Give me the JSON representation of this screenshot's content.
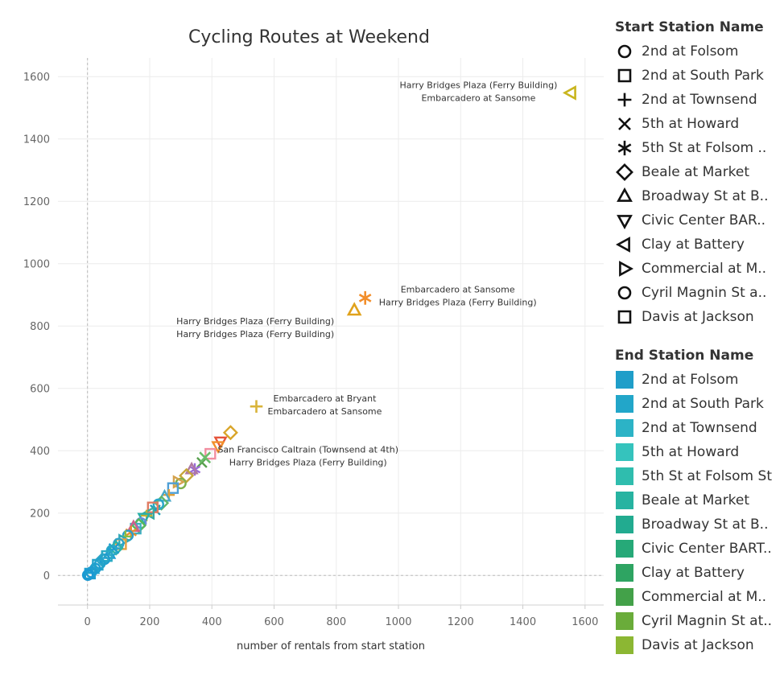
{
  "chart_data": {
    "type": "scatter",
    "title": "Cycling Routes at Weekend",
    "xlabel": "number of rentals from start station",
    "ylabel": "",
    "xlim": [
      -95,
      1660
    ],
    "ylim": [
      -95,
      1660
    ],
    "x_ticks": [
      0,
      200,
      400,
      600,
      800,
      1000,
      1200,
      1400,
      1600
    ],
    "y_ticks": [
      0,
      200,
      400,
      600,
      800,
      1000,
      1200,
      1400,
      1600
    ],
    "grid": true,
    "reference_lines": {
      "x": 0,
      "y": 0
    },
    "labeled_points": [
      {
        "x": 1555,
        "y": 1548,
        "shape": "triangle-left",
        "color": "#c9b51e",
        "start": "Harry Bridges Plaza (Ferry Building)",
        "end": "Embarcadero at Sansome",
        "label_pos": "left"
      },
      {
        "x": 893,
        "y": 890,
        "shape": "asterisk",
        "color": "#f28e2b",
        "start": "Embarcadero at Sansome",
        "end": "Harry Bridges Plaza (Ferry Building)",
        "label_pos": "right-up"
      },
      {
        "x": 858,
        "y": 850,
        "shape": "triangle-up",
        "color": "#e0a21c",
        "start": "Harry Bridges Plaza (Ferry Building)",
        "end": "Harry Bridges Plaza (Ferry Building)",
        "label_pos": "below"
      },
      {
        "x": 543,
        "y": 542,
        "shape": "plus",
        "color": "#d9b43a",
        "start": "Embarcadero at Bryant",
        "end": "Embarcadero at Sansome",
        "label_pos": "right"
      },
      {
        "x": 378,
        "y": 378,
        "shape": "cross",
        "color": "#6bbd6a",
        "start": "San Francisco Caltrain (Townsend at 4th)",
        "end": "Harry Bridges Plaza (Ferry Building)",
        "label_pos": "right-down"
      }
    ],
    "other_points": [
      {
        "x": 460,
        "y": 458,
        "shape": "diamond",
        "color": "#d9a52a"
      },
      {
        "x": 428,
        "y": 430,
        "shape": "triangle-down",
        "color": "#e5533a"
      },
      {
        "x": 420,
        "y": 415,
        "shape": "triangle-down",
        "color": "#f28e2b"
      },
      {
        "x": 395,
        "y": 390,
        "shape": "square",
        "color": "#f28ea0"
      },
      {
        "x": 368,
        "y": 362,
        "shape": "cross",
        "color": "#59a14f"
      },
      {
        "x": 345,
        "y": 340,
        "shape": "asterisk",
        "color": "#9b6bd6"
      },
      {
        "x": 335,
        "y": 340,
        "shape": "triangle-up",
        "color": "#b07aa1"
      },
      {
        "x": 318,
        "y": 320,
        "shape": "diamond",
        "color": "#c6a63a"
      },
      {
        "x": 300,
        "y": 295,
        "shape": "circle",
        "color": "#7fb04b"
      },
      {
        "x": 290,
        "y": 300,
        "shape": "triangle-right",
        "color": "#d4a24c"
      },
      {
        "x": 275,
        "y": 280,
        "shape": "square",
        "color": "#4e9fd6"
      },
      {
        "x": 262,
        "y": 258,
        "shape": "plus",
        "color": "#e1a03a"
      },
      {
        "x": 248,
        "y": 252,
        "shape": "triangle-up",
        "color": "#4aa8c8"
      },
      {
        "x": 238,
        "y": 232,
        "shape": "diamond",
        "color": "#5fb66a"
      },
      {
        "x": 228,
        "y": 228,
        "shape": "circle",
        "color": "#2aa7c9"
      },
      {
        "x": 218,
        "y": 210,
        "shape": "cross",
        "color": "#1f9fb8"
      },
      {
        "x": 210,
        "y": 218,
        "shape": "square",
        "color": "#e07b62"
      },
      {
        "x": 200,
        "y": 200,
        "shape": "triangle-left",
        "color": "#3aa9a0"
      },
      {
        "x": 190,
        "y": 192,
        "shape": "plus",
        "color": "#c0b035"
      },
      {
        "x": 182,
        "y": 185,
        "shape": "triangle-down",
        "color": "#28b0a8"
      },
      {
        "x": 172,
        "y": 168,
        "shape": "circle",
        "color": "#6a8ed6"
      },
      {
        "x": 165,
        "y": 160,
        "shape": "diamond",
        "color": "#58b858"
      },
      {
        "x": 155,
        "y": 150,
        "shape": "square",
        "color": "#3db0c0"
      },
      {
        "x": 148,
        "y": 155,
        "shape": "triangle-up",
        "color": "#d35f8a"
      },
      {
        "x": 140,
        "y": 138,
        "shape": "asterisk",
        "color": "#e8902e"
      },
      {
        "x": 130,
        "y": 128,
        "shape": "circle",
        "color": "#2a9fd0"
      },
      {
        "x": 122,
        "y": 125,
        "shape": "plus",
        "color": "#8cbf3f"
      },
      {
        "x": 115,
        "y": 112,
        "shape": "triangle-right",
        "color": "#31a9b8"
      },
      {
        "x": 108,
        "y": 100,
        "shape": "square",
        "color": "#e6a040"
      },
      {
        "x": 100,
        "y": 102,
        "shape": "circle",
        "color": "#2ca3c8"
      },
      {
        "x": 92,
        "y": 88,
        "shape": "diamond",
        "color": "#2eb3a5"
      },
      {
        "x": 85,
        "y": 86,
        "shape": "cross",
        "color": "#1b9bd0"
      },
      {
        "x": 78,
        "y": 80,
        "shape": "circle",
        "color": "#29a8c6"
      },
      {
        "x": 70,
        "y": 68,
        "shape": "triangle-up",
        "color": "#21a0d2"
      },
      {
        "x": 62,
        "y": 62,
        "shape": "square",
        "color": "#2aabc4"
      },
      {
        "x": 55,
        "y": 52,
        "shape": "circle",
        "color": "#1d9ccf"
      },
      {
        "x": 48,
        "y": 50,
        "shape": "diamond",
        "color": "#2ba6c7"
      },
      {
        "x": 40,
        "y": 38,
        "shape": "circle",
        "color": "#20a1cc"
      },
      {
        "x": 33,
        "y": 34,
        "shape": "square",
        "color": "#26a4c9"
      },
      {
        "x": 25,
        "y": 22,
        "shape": "circle",
        "color": "#1e9ed0"
      },
      {
        "x": 18,
        "y": 20,
        "shape": "triangle-up",
        "color": "#22a2cc"
      },
      {
        "x": 12,
        "y": 10,
        "shape": "circle",
        "color": "#1d9bd1"
      },
      {
        "x": 8,
        "y": 6,
        "shape": "square",
        "color": "#1f9fce"
      },
      {
        "x": 4,
        "y": 3,
        "shape": "circle",
        "color": "#1c9ad2"
      },
      {
        "x": 1,
        "y": 1,
        "shape": "circle",
        "color": "#1b99d3"
      }
    ],
    "legend_position": "right"
  },
  "legend_start": {
    "title": "Start Station Name",
    "items": [
      {
        "label": "2nd at Folsom",
        "shape": "circle"
      },
      {
        "label": "2nd at South Park",
        "shape": "square"
      },
      {
        "label": "2nd at Townsend",
        "shape": "plus"
      },
      {
        "label": "5th at Howard",
        "shape": "cross"
      },
      {
        "label": "5th St at Folsom ..",
        "shape": "asterisk"
      },
      {
        "label": "Beale at Market",
        "shape": "diamond"
      },
      {
        "label": "Broadway St at B..",
        "shape": "triangle-up"
      },
      {
        "label": "Civic Center BAR..",
        "shape": "triangle-down"
      },
      {
        "label": "Clay at Battery",
        "shape": "triangle-left"
      },
      {
        "label": "Commercial at M..",
        "shape": "triangle-right"
      },
      {
        "label": "Cyril Magnin St a..",
        "shape": "circle"
      },
      {
        "label": "Davis at Jackson",
        "shape": "square"
      }
    ]
  },
  "legend_end": {
    "title": "End Station Name",
    "items": [
      {
        "label": "2nd at Folsom",
        "color": "#1f9ec9"
      },
      {
        "label": "2nd at South Park",
        "color": "#22a6c9"
      },
      {
        "label": "2nd at Townsend",
        "color": "#2cb3c6"
      },
      {
        "label": "5th at Howard",
        "color": "#35c3bd"
      },
      {
        "label": "5th St at Folsom St",
        "color": "#2fbdae"
      },
      {
        "label": "Beale at Market",
        "color": "#27b3a1"
      },
      {
        "label": "Broadway St at B..",
        "color": "#22ab90"
      },
      {
        "label": "Civic Center BART..",
        "color": "#26a978"
      },
      {
        "label": "Clay at Battery",
        "color": "#2ea462"
      },
      {
        "label": "Commercial at M..",
        "color": "#43a149"
      },
      {
        "label": "Cyril Magnin St at..",
        "color": "#6aac3a"
      },
      {
        "label": "Davis at Jackson",
        "color": "#8cb733"
      }
    ]
  }
}
